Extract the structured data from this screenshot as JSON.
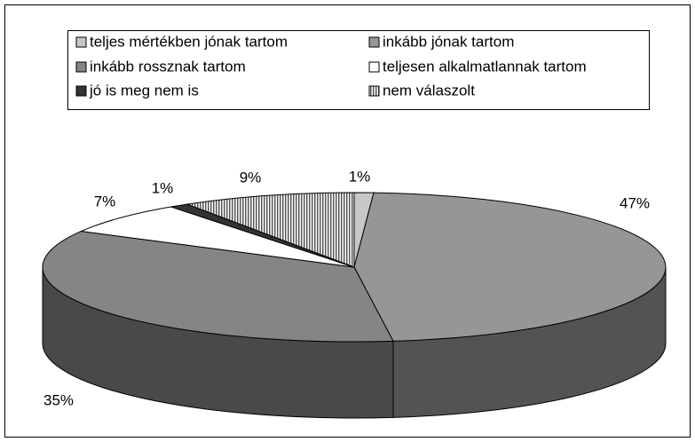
{
  "chart_data": {
    "type": "pie3d",
    "categories": [
      "teljes mértékben jónak tartom",
      "inkább jónak tartom",
      "inkább rossznak tartom",
      "teljesen alkalmatlannak tartom",
      "jó is meg nem is",
      "nem válaszolt"
    ],
    "values": [
      1,
      47,
      35,
      7,
      1,
      9
    ],
    "value_labels": [
      "1%",
      "47%",
      "35%",
      "7%",
      "1%",
      "9%"
    ],
    "colors": [
      "#c8c8c8",
      "#969696",
      "#858585",
      "#ffffff",
      "#333333",
      "#ffffff"
    ],
    "patterns": [
      null,
      null,
      null,
      null,
      null,
      "vertical-lines"
    ],
    "legend": "top"
  }
}
